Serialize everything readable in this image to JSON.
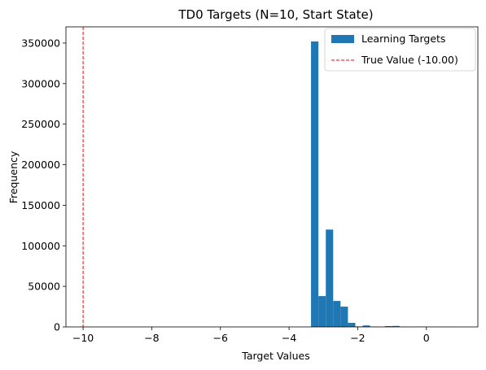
{
  "chart_data": {
    "type": "bar",
    "title": "TD0 Targets (N=10, Start State)",
    "xlabel": "Target Values",
    "ylabel": "Frequency",
    "xlim": [
      -10.5,
      1.5
    ],
    "ylim": [
      0,
      370000
    ],
    "xticks": [
      -10,
      -8,
      -6,
      -4,
      -2,
      0
    ],
    "xtick_labels": [
      "−10",
      "−8",
      "−6",
      "−4",
      "−2",
      "0"
    ],
    "yticks": [
      0,
      50000,
      100000,
      150000,
      200000,
      250000,
      300000,
      350000
    ],
    "ytick_labels": [
      "0",
      "50000",
      "100000",
      "150000",
      "200000",
      "250000",
      "300000",
      "350000"
    ],
    "grid": false,
    "legend_position": "top-right",
    "legend": {
      "hist_label": "Learning Targets",
      "line_label": "True Value (-10.00)"
    },
    "reference_line": {
      "x": -10,
      "color": "#ff0000",
      "style": "dashed"
    },
    "bar_color": "#1f77b4",
    "bin_width": 0.215,
    "bins": [
      {
        "x0": -3.36,
        "count": 352000
      },
      {
        "x0": -3.145,
        "count": 38000
      },
      {
        "x0": -2.93,
        "count": 120000
      },
      {
        "x0": -2.715,
        "count": 32000
      },
      {
        "x0": -2.5,
        "count": 25000
      },
      {
        "x0": -2.285,
        "count": 5000
      },
      {
        "x0": -2.07,
        "count": 600
      },
      {
        "x0": -1.855,
        "count": 1800
      },
      {
        "x0": -1.64,
        "count": 400
      },
      {
        "x0": -1.425,
        "count": 200
      },
      {
        "x0": -1.21,
        "count": 1000
      },
      {
        "x0": -0.995,
        "count": 1200
      },
      {
        "x0": -0.78,
        "count": 300
      },
      {
        "x0": -0.565,
        "count": 100
      },
      {
        "x0": -0.35,
        "count": 300
      },
      {
        "x0": -0.135,
        "count": 200
      },
      {
        "x0": 0.08,
        "count": 150
      },
      {
        "x0": 0.295,
        "count": 100
      },
      {
        "x0": 0.51,
        "count": 150
      },
      {
        "x0": 0.725,
        "count": 100
      }
    ]
  }
}
